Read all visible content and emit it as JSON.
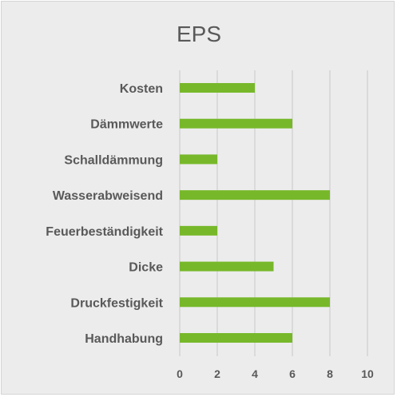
{
  "chart_data": {
    "type": "bar",
    "orientation": "horizontal",
    "title": "EPS",
    "categories": [
      "Kosten",
      "Dämmwerte",
      "Schalldämmung",
      "Wasserabweisend",
      "Feuerbeständigkeit",
      "Dicke",
      "Druckfestigkeit",
      "Handhabung"
    ],
    "values": [
      4,
      6,
      2,
      8,
      2,
      5,
      8,
      6
    ],
    "xticks": [
      0,
      2,
      4,
      6,
      8,
      10
    ],
    "xlim": [
      0,
      10
    ],
    "grid": true,
    "legend": "none",
    "bar_color": "#77b82a",
    "background_color": "#ececec"
  }
}
